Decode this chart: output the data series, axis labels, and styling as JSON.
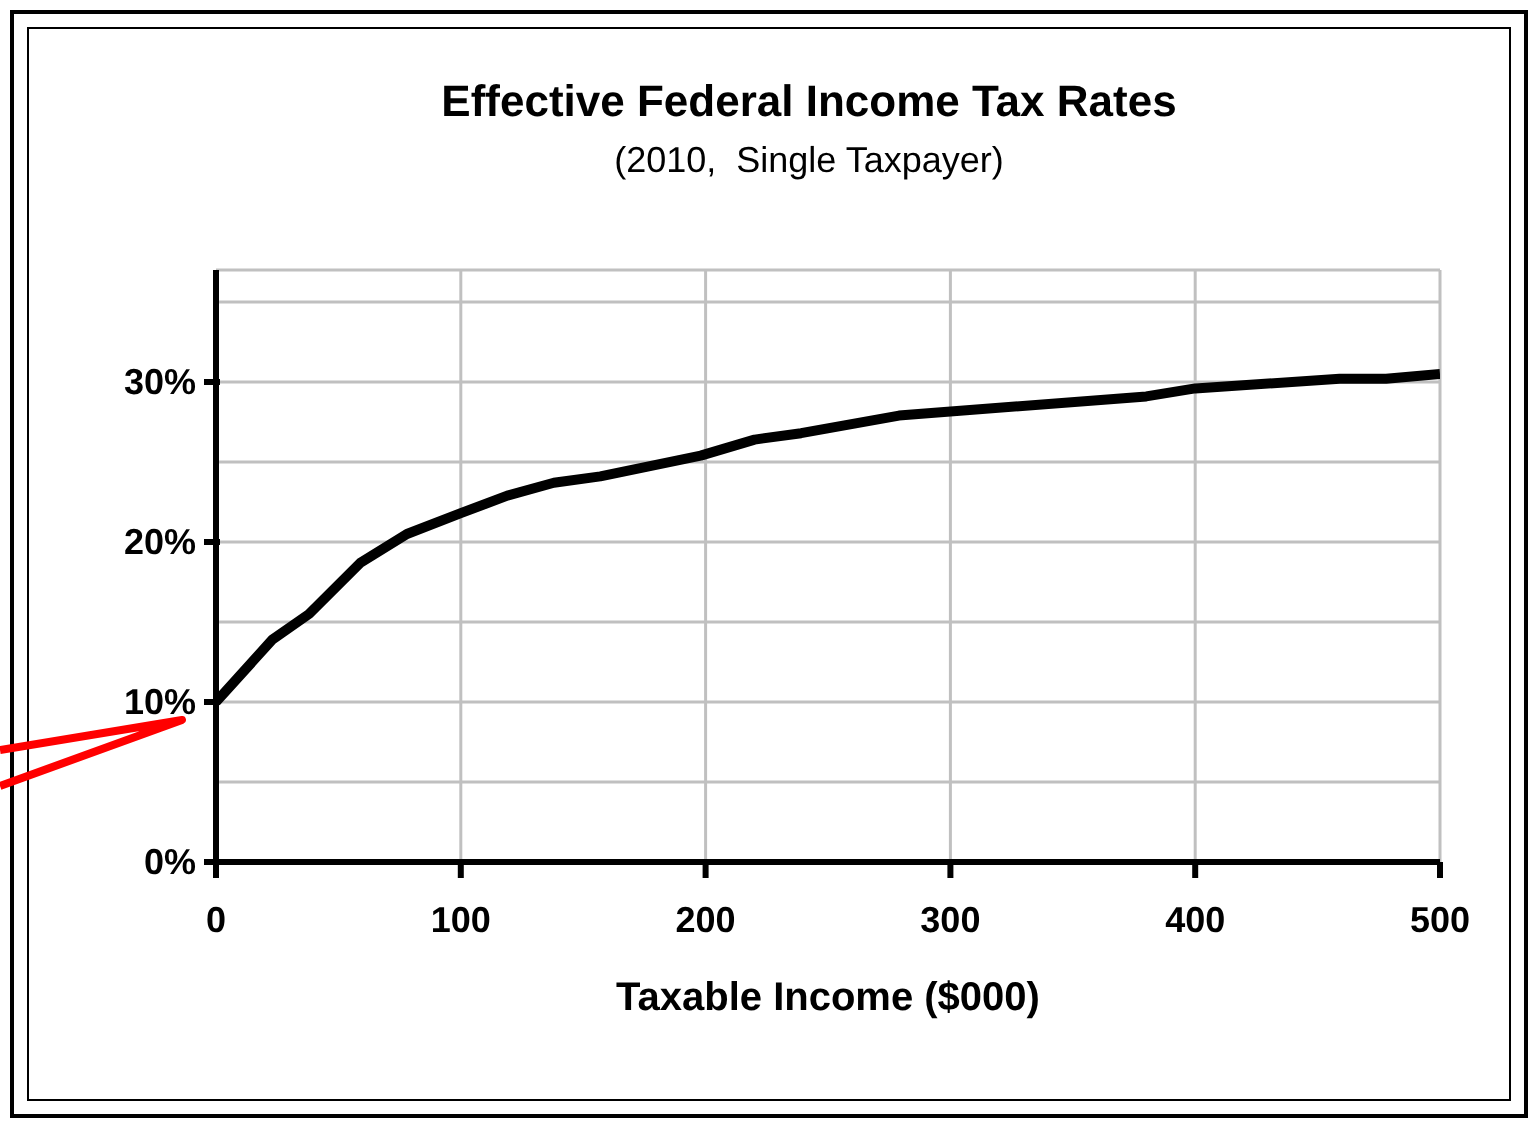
{
  "chart_data": {
    "type": "line",
    "title": "Effective Federal Income Tax Rates",
    "subtitle": "(2010,  Single Taxpayer)",
    "xlabel": "Taxable Income ($000)",
    "x": [
      0,
      23,
      38,
      59,
      78,
      100,
      119,
      138,
      157,
      198,
      220,
      239,
      279,
      380,
      400,
      459,
      478,
      500
    ],
    "series": [
      {
        "color": "#000000",
        "values": [
          10,
          13.9,
          15.5,
          18.7,
          20.5,
          21.8,
          22.9,
          23.7,
          24.1,
          25.4,
          26.4,
          26.8,
          27.9,
          29.1,
          29.6,
          30.2,
          30.2,
          30.5
        ]
      }
    ],
    "xlim": [
      0,
      500
    ],
    "xticks": [
      0,
      100,
      200,
      300,
      400,
      500
    ],
    "ylim": [
      0,
      37
    ],
    "yticks": [
      {
        "value": 0,
        "label": "0%"
      },
      {
        "value": 5,
        "label": null
      },
      {
        "value": 10,
        "label": "10%"
      },
      {
        "value": 15,
        "label": null
      },
      {
        "value": 20,
        "label": "20%"
      },
      {
        "value": 25,
        "label": null
      },
      {
        "value": 30,
        "label": "30%"
      },
      {
        "value": 35,
        "label": null
      }
    ],
    "grid": true,
    "marker": "none",
    "line_style": "solid"
  }
}
